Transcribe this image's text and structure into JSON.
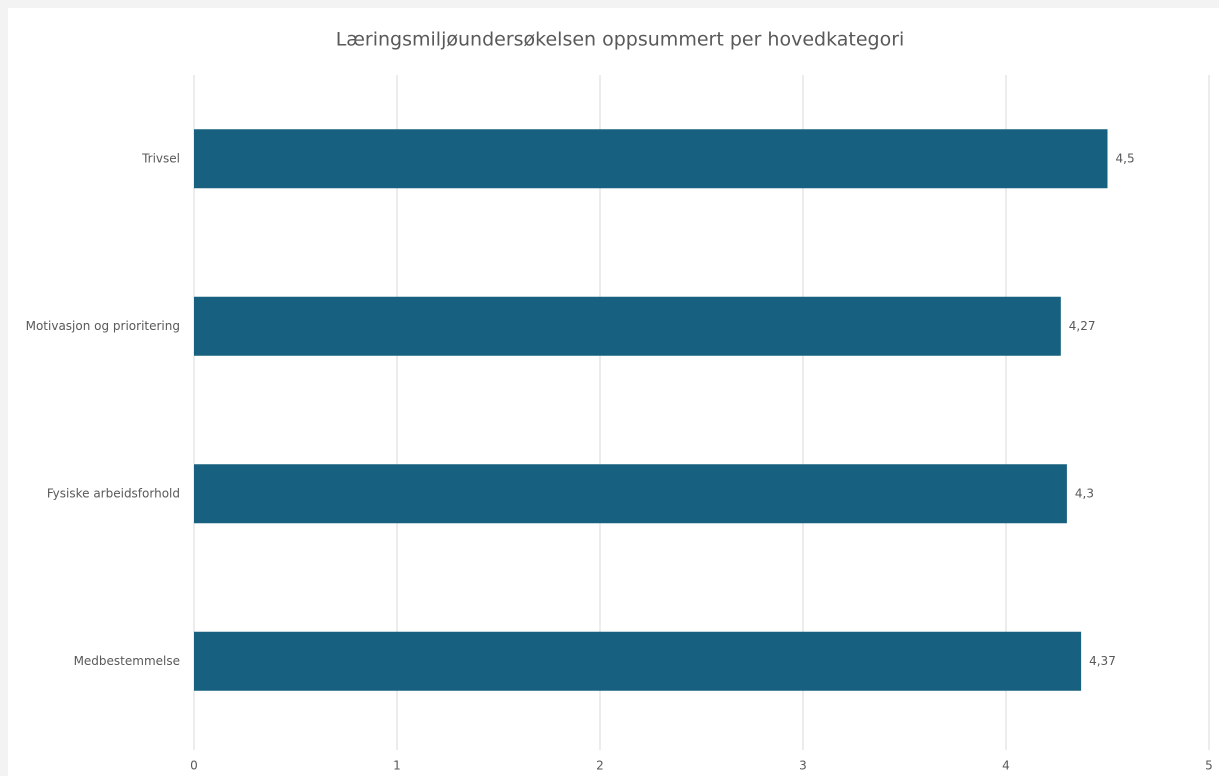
{
  "chart_data": {
    "type": "bar",
    "orientation": "horizontal",
    "title": "Læringsmiljøundersøkelsen oppsummert per hovedkategori",
    "categories": [
      "Trivsel",
      "Motivasjon og prioritering",
      "Fysiske arbeidsforhold",
      "Medbestemmelse"
    ],
    "values": [
      4.5,
      4.27,
      4.3,
      4.37
    ],
    "value_labels": [
      "4,5",
      "4,27",
      "4,3",
      "4,37"
    ],
    "color": "#17607f",
    "xlim": [
      0,
      5
    ],
    "xticks": [
      0,
      1,
      2,
      3,
      4,
      5
    ],
    "grid": true
  }
}
